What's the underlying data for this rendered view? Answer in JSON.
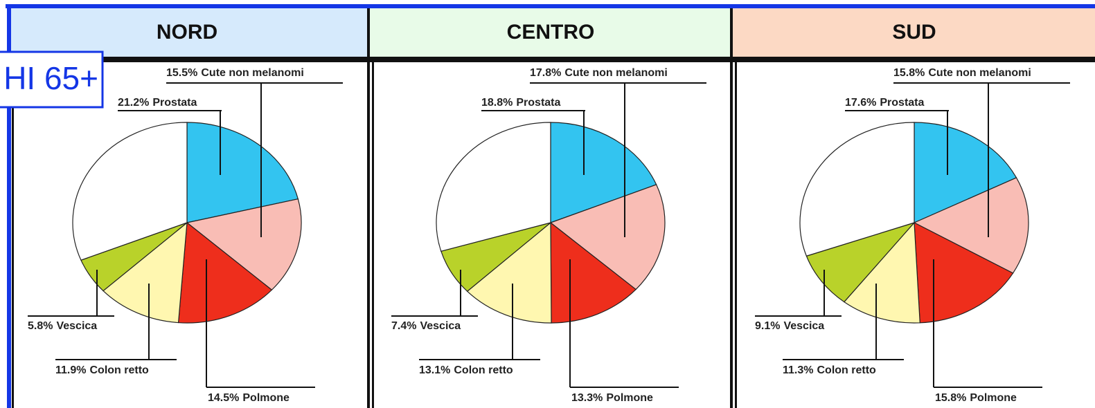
{
  "label_box": "HI 65+",
  "chart_data": [
    {
      "type": "pie",
      "title": "NORD",
      "categories": [
        "Prostata",
        "Cute non melanomi",
        "Polmone",
        "Colon retto",
        "Vescica",
        null
      ],
      "values": [
        21.2,
        15.5,
        14.5,
        11.9,
        5.8,
        31.1
      ],
      "value_labels": [
        "21.2%",
        "15.5%",
        "14.5%",
        "11.9%",
        "5.8%",
        null
      ],
      "colors": [
        "#33c4f0",
        "#f9bdb5",
        "#ee2e1c",
        "#fff7b0",
        "#b9d22a",
        "#ffffff"
      ],
      "header_color": "#d6eafc"
    },
    {
      "type": "pie",
      "title": "CENTRO",
      "categories": [
        "Prostata",
        "Cute non melanomi",
        "Polmone",
        "Colon retto",
        "Vescica",
        null
      ],
      "values": [
        18.8,
        17.8,
        13.3,
        13.1,
        7.4,
        29.6
      ],
      "value_labels": [
        "18.8%",
        "17.8%",
        "13.3%",
        "13.1%",
        "7.4%",
        null
      ],
      "colors": [
        "#33c4f0",
        "#f9bdb5",
        "#ee2e1c",
        "#fff7b0",
        "#b9d22a",
        "#ffffff"
      ],
      "header_color": "#e8fbe8"
    },
    {
      "type": "pie",
      "title": "SUD",
      "categories": [
        "Prostata",
        "Cute non melanomi",
        "Polmone",
        "Colon retto",
        "Vescica",
        null
      ],
      "values": [
        17.6,
        15.8,
        15.8,
        11.3,
        9.1,
        30.4
      ],
      "value_labels": [
        "17.6%",
        "15.8%",
        "15.8%",
        "11.3%",
        "9.1%",
        null
      ],
      "colors": [
        "#33c4f0",
        "#f9bdb5",
        "#ee2e1c",
        "#fff7b0",
        "#b9d22a",
        "#ffffff"
      ],
      "header_color": "#fcd9c4"
    }
  ]
}
